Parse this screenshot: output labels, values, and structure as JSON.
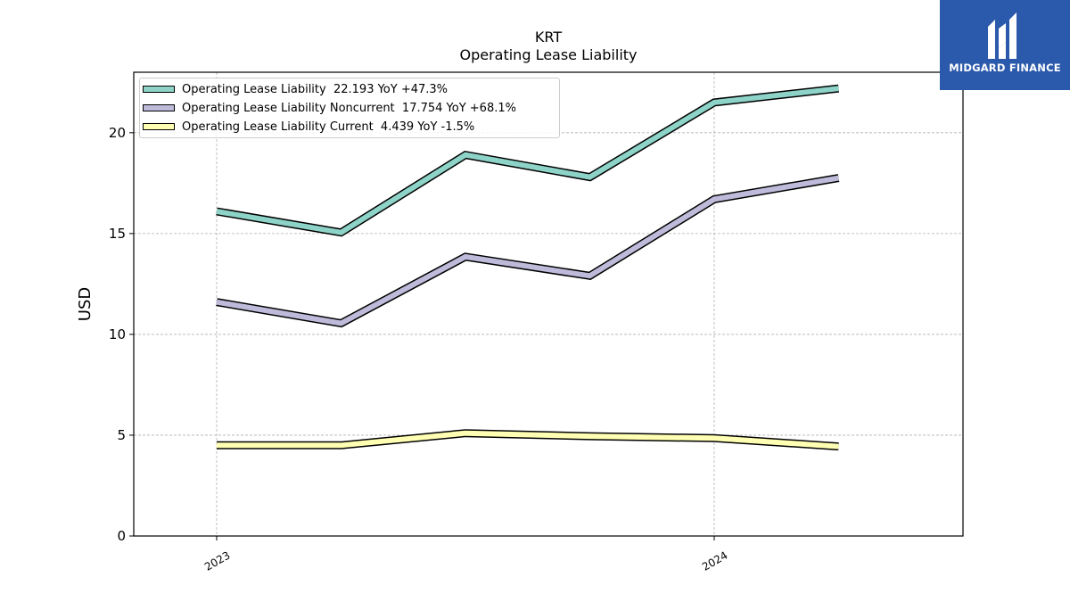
{
  "chart_data": {
    "type": "line",
    "title": "KRT",
    "subtitle": "Operating Lease Liability",
    "ylabel": "USD",
    "xlabel": "",
    "ylim": [
      0,
      23
    ],
    "y_ticks": [
      0,
      5,
      10,
      15,
      20
    ],
    "x_ticks": [
      "2023",
      "2024"
    ],
    "x": [
      "2023-01",
      "2023-04",
      "2023-07",
      "2023-10",
      "2024-01",
      "2024-04"
    ],
    "grid": true,
    "legend_position": "top-left",
    "series": [
      {
        "name": "Operating Lease Liability",
        "legend_label": "Operating Lease Liability  22.193 YoY +47.3%",
        "color": "#8dd3c7",
        "values": [
          16.1,
          15.05,
          18.9,
          17.8,
          21.5,
          22.193
        ]
      },
      {
        "name": "Operating Lease Liability Noncurrent",
        "legend_label": "Operating Lease Liability Noncurrent  17.754 YoY +68.1%",
        "color": "#bebada",
        "values": [
          11.6,
          10.55,
          13.85,
          12.9,
          16.7,
          17.754
        ]
      },
      {
        "name": "Operating Lease Liability Current",
        "legend_label": "Operating Lease Liability Current  4.439 YoY -1.5%",
        "color": "#ffffb3",
        "values": [
          4.5,
          4.5,
          5.1,
          4.95,
          4.85,
          4.439
        ]
      }
    ]
  },
  "logo": {
    "text": "MIDGARD FINANCE",
    "icon": "midgard-logo-icon"
  }
}
